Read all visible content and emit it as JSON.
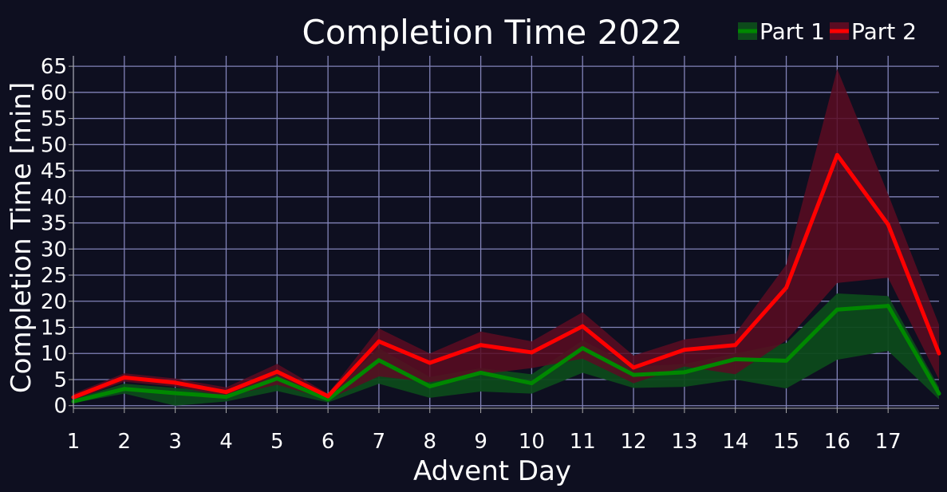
{
  "chart_data": {
    "type": "line",
    "title": "Completion Time 2022",
    "xlabel": "Advent Day",
    "ylabel": "Completion Time [min]",
    "x": [
      1,
      2,
      3,
      4,
      5,
      6,
      7,
      8,
      9,
      10,
      11,
      12,
      13,
      14,
      15,
      16,
      17,
      18
    ],
    "xticks": [
      "1",
      "2",
      "3",
      "4",
      "5",
      "6",
      "7",
      "8",
      "9",
      "10",
      "11",
      "12",
      "13",
      "14",
      "15",
      "16",
      "17"
    ],
    "xlim": [
      1,
      18
    ],
    "yticks": [
      "0",
      "5",
      "10",
      "15",
      "20",
      "25",
      "30",
      "35",
      "40",
      "45",
      "50",
      "55",
      "60",
      "65"
    ],
    "ylim": [
      -0.5,
      67
    ],
    "grid": true,
    "legend_position": "top-right",
    "series": [
      {
        "name": "Part 1",
        "color": "#008800",
        "band_color": "#0d4a1b",
        "values": [
          0.8,
          3.2,
          2.4,
          1.7,
          5.2,
          1.2,
          8.7,
          3.7,
          6.3,
          4.3,
          11.0,
          5.9,
          6.4,
          8.9,
          8.6,
          18.4,
          19.1,
          2.3
        ],
        "upper": [
          1.3,
          4.2,
          3.4,
          2.7,
          6.0,
          1.8,
          11.0,
          5.5,
          7.2,
          6.0,
          12.5,
          7.5,
          8.0,
          10.0,
          12.0,
          21.5,
          21.0,
          3.5
        ],
        "lower": [
          0.5,
          2.3,
          0.0,
          0.8,
          2.8,
          0.6,
          4.2,
          1.5,
          2.7,
          2.3,
          6.3,
          3.4,
          3.6,
          5.0,
          3.3,
          8.8,
          10.5,
          1.2
        ]
      },
      {
        "name": "Part 2",
        "color": "#ff0000",
        "band_color": "#5a0c22",
        "values": [
          1.6,
          5.4,
          4.4,
          2.6,
          6.5,
          1.8,
          12.3,
          8.2,
          11.6,
          10.2,
          15.2,
          7.3,
          10.7,
          11.6,
          22.6,
          48.0,
          34.7,
          10.0
        ],
        "upper": [
          2.3,
          6.2,
          5.2,
          3.5,
          8.0,
          2.3,
          14.8,
          10.0,
          14.2,
          12.3,
          17.9,
          9.6,
          12.7,
          13.8,
          27.0,
          64.5,
          40.5,
          15.5
        ],
        "lower": [
          1.1,
          4.6,
          3.6,
          1.8,
          4.0,
          1.2,
          5.6,
          4.5,
          6.0,
          7.2,
          9.0,
          4.3,
          7.5,
          6.0,
          12.5,
          23.5,
          24.5,
          5.0
        ]
      }
    ]
  }
}
